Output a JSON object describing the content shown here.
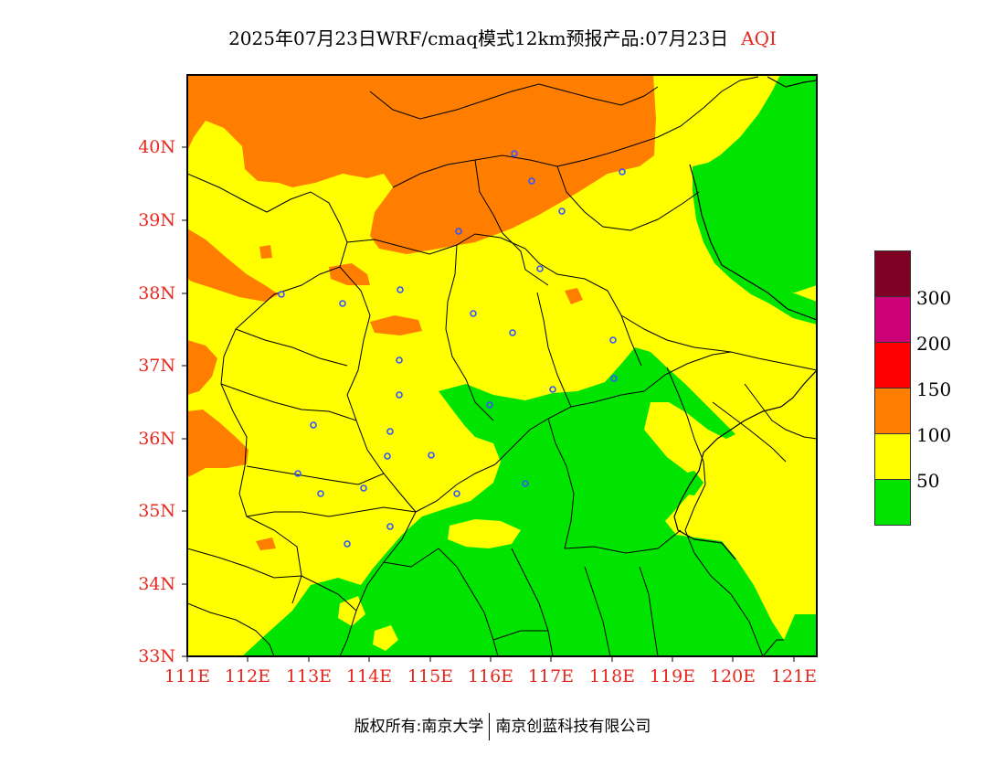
{
  "title": {
    "text": "2025年07月23日WRF/cmaq模式12km预报产品:07月23日",
    "metric": "AQI"
  },
  "axes": {
    "lat_labels": [
      "40N",
      "39N",
      "38N",
      "37N",
      "36N",
      "35N",
      "34N",
      "33N"
    ],
    "lon_labels": [
      "111E",
      "112E",
      "113E",
      "114E",
      "115E",
      "116E",
      "117E",
      "118E",
      "119E",
      "120E",
      "121E"
    ]
  },
  "legend": {
    "levels": [
      {
        "color": "#00e400",
        "label": "50"
      },
      {
        "color": "#ffff00",
        "label": "100"
      },
      {
        "color": "#ff7e00",
        "label": "150"
      },
      {
        "color": "#ff0000",
        "label": "200"
      },
      {
        "color": "#cc0077",
        "label": "300"
      },
      {
        "color": "#7e0023",
        "label": ""
      }
    ]
  },
  "colors": {
    "good": "#00e400",
    "moderate": "#ffff00",
    "unhealthy_sensitive": "#ff7e00",
    "axis_labels": "#e8271e",
    "station_marker": "#3355ff"
  },
  "footer": {
    "copyright": "版权所有:南京大学",
    "company": "南京创蓝科技有限公司"
  }
}
